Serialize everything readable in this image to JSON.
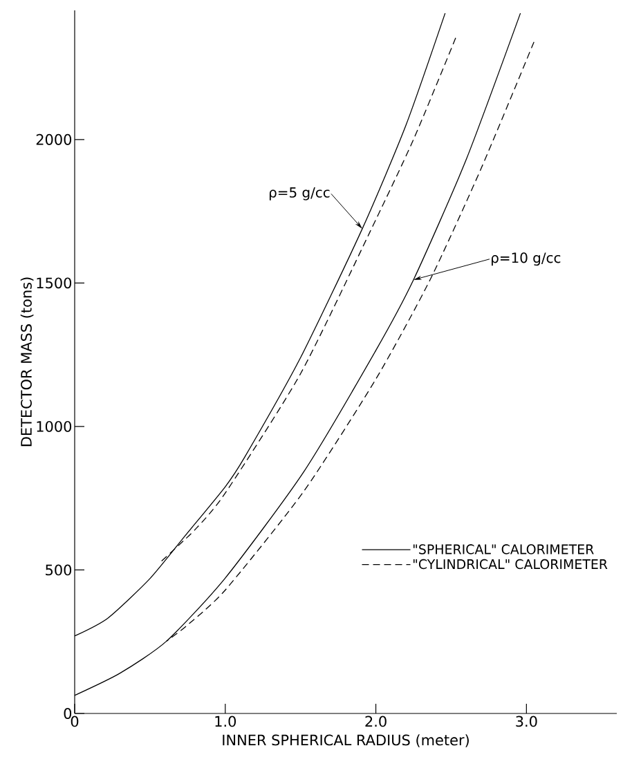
{
  "chart_data": {
    "type": "line",
    "xlabel": "INNER SPHERICAL RADIUS (meter)",
    "ylabel": "DETECTOR MASS (tons)",
    "xlim": [
      0,
      3.6
    ],
    "ylim": [
      0,
      2450
    ],
    "xticks": [
      0,
      {
        "value": 1,
        "label": "1.0"
      },
      {
        "value": 2,
        "label": "2.0"
      },
      {
        "value": 3,
        "label": "3.0"
      }
    ],
    "yticks": [
      0,
      500,
      1000,
      1500,
      2000
    ],
    "grid": false,
    "legend": "bottom right",
    "marker": "none",
    "series": [
      {
        "name": "\"SPHERICAL\" CALORIMETER",
        "color": "#000000",
        "line_style": "solid",
        "x": [
          0,
          0.22,
          0.5,
          0.73,
          1.0,
          1.13,
          1.5,
          1.91,
          2.2,
          2.46
        ],
        "values": [
          270,
          332,
          470,
          617,
          790,
          894,
          1240,
          1689,
          2050,
          2440
        ]
      },
      {
        "name": "\"CYLINDRICAL\" CALORIMETER",
        "color": "#000000",
        "line_style": "dashed",
        "x": [
          0.56,
          0.8,
          1.0,
          1.5,
          1.96,
          2.25,
          2.53
        ],
        "values": [
          523,
          641,
          768,
          1184,
          1677,
          2000,
          2354
        ]
      },
      {
        "color": "#000000",
        "line_style": "solid",
        "x": [
          0,
          0.3,
          0.61,
          1.0,
          1.52,
          2.0,
          2.25,
          2.6,
          2.96
        ],
        "values": [
          63,
          140,
          252,
          472,
          841,
          1265,
          1511,
          1930,
          2440
        ]
      },
      {
        "color": "#000000",
        "line_style": "dashed",
        "x": [
          0.61,
          0.74,
          1.0,
          1.52,
          2.0,
          2.36,
          2.7,
          3.05
        ],
        "values": [
          252,
          304,
          430,
          773,
          1165,
          1511,
          1900,
          2340
        ]
      }
    ],
    "annotations": [
      {
        "text": "ρ=5 g/cc",
        "x": 1.91,
        "y": 1689
      },
      {
        "text": "ρ=10 g/cc",
        "x": 2.25,
        "y": 1511
      }
    ]
  }
}
